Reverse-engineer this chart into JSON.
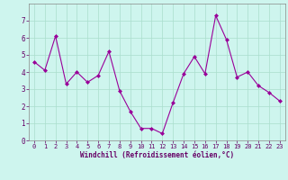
{
  "x": [
    0,
    1,
    2,
    3,
    4,
    5,
    6,
    7,
    8,
    9,
    10,
    11,
    12,
    13,
    14,
    15,
    16,
    17,
    18,
    19,
    20,
    21,
    22,
    23
  ],
  "y": [
    4.6,
    4.1,
    6.1,
    3.3,
    4.0,
    3.4,
    3.8,
    5.2,
    2.9,
    1.7,
    0.7,
    0.7,
    0.4,
    2.2,
    3.9,
    4.9,
    3.9,
    7.3,
    5.9,
    3.7,
    4.0,
    3.2,
    2.8,
    2.3
  ],
  "line_color": "#990099",
  "marker": "D",
  "marker_size": 2,
  "bg_color": "#cef5ee",
  "grid_color": "#aaddcc",
  "xlabel": "Windchill (Refroidissement éolien,°C)",
  "tick_color": "#660066",
  "ylim": [
    0,
    8
  ],
  "xlim": [
    -0.5,
    23.5
  ],
  "yticks": [
    0,
    1,
    2,
    3,
    4,
    5,
    6,
    7
  ],
  "xticks": [
    0,
    1,
    2,
    3,
    4,
    5,
    6,
    7,
    8,
    9,
    10,
    11,
    12,
    13,
    14,
    15,
    16,
    17,
    18,
    19,
    20,
    21,
    22,
    23
  ],
  "spine_color": "#888888",
  "tick_fontsize": 5.0,
  "xlabel_fontsize": 5.5
}
